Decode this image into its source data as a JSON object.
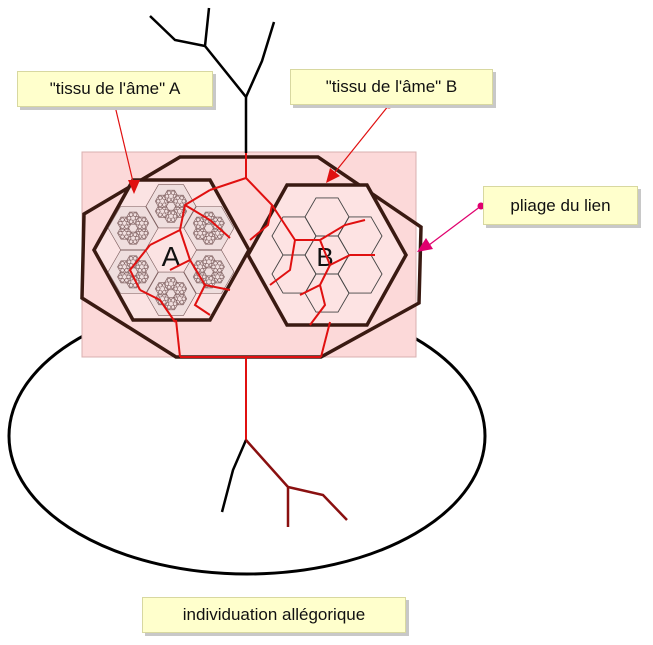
{
  "labels": {
    "tissue_a": "\"tissu de l'âme\" A",
    "tissue_b": "\"tissu de l'âme\" B",
    "fold": "pliage du lien",
    "caption": "individuation allégorique",
    "cell_a": "A",
    "cell_b": "B"
  },
  "colors": {
    "background_panel": "#fcd9d9",
    "callout_fill": "#ffffcc",
    "frame_stroke": "#3a1a12",
    "vein_red": "#e01010",
    "tree_black": "#000000",
    "fractal_fill": "#b39a9a",
    "arrow_pink": "#e0006e"
  }
}
